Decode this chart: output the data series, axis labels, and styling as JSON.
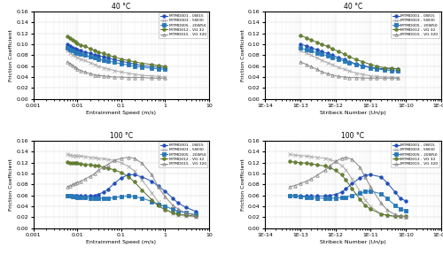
{
  "legend_entries": [
    "MTMD001 - 0W15",
    "MTMD003 - 5W30",
    "MTMD005 - 20W50",
    "MTMD012 - VG 32",
    "MTMD015 - VG 320"
  ],
  "xlabel_speed": "Entrainment Speed (m/s)",
  "xlabel_stribeck": "Stribeck Number (Un/p)",
  "ylabel": "Friction Coefficient",
  "line_colors": [
    "#1e4db5",
    "#aaaaaa",
    "#2878b8",
    "#556b2f",
    "#888888"
  ],
  "marker_styles": [
    "o",
    "x",
    "s",
    "o",
    "^"
  ],
  "marker_sizes": [
    2.5,
    3.5,
    2.5,
    2.5,
    2.5
  ],
  "markerfacecolors": [
    "#1e4db5",
    "none",
    "#2878b8",
    "#6b8e23",
    "none"
  ],
  "series_keys": [
    "MTMD001",
    "MTMD003",
    "MTMD005",
    "MTMD012",
    "MTMD015"
  ],
  "series_40_speed": {
    "MTMD001": {
      "x": [
        0.006,
        0.007,
        0.008,
        0.009,
        0.01,
        0.012,
        0.015,
        0.02,
        0.025,
        0.03,
        0.04,
        0.05,
        0.07,
        0.1,
        0.15,
        0.2,
        0.3,
        0.5,
        0.7,
        1.0
      ],
      "y": [
        0.1,
        0.097,
        0.094,
        0.092,
        0.09,
        0.088,
        0.086,
        0.083,
        0.081,
        0.079,
        0.077,
        0.075,
        0.072,
        0.069,
        0.066,
        0.064,
        0.061,
        0.059,
        0.058,
        0.057
      ]
    },
    "MTMD003": {
      "x": [
        0.006,
        0.007,
        0.008,
        0.009,
        0.01,
        0.012,
        0.015,
        0.02,
        0.025,
        0.03,
        0.04,
        0.05,
        0.07,
        0.1,
        0.15,
        0.2,
        0.3,
        0.5,
        0.7,
        1.0
      ],
      "y": [
        0.088,
        0.084,
        0.081,
        0.079,
        0.076,
        0.073,
        0.07,
        0.066,
        0.063,
        0.06,
        0.057,
        0.055,
        0.052,
        0.049,
        0.047,
        0.045,
        0.043,
        0.042,
        0.041,
        0.04
      ]
    },
    "MTMD005": {
      "x": [
        0.006,
        0.007,
        0.008,
        0.009,
        0.01,
        0.012,
        0.015,
        0.02,
        0.025,
        0.03,
        0.04,
        0.05,
        0.07,
        0.1,
        0.15,
        0.2,
        0.3,
        0.5,
        0.7,
        1.0
      ],
      "y": [
        0.093,
        0.09,
        0.088,
        0.086,
        0.084,
        0.082,
        0.08,
        0.077,
        0.075,
        0.073,
        0.071,
        0.069,
        0.067,
        0.064,
        0.062,
        0.06,
        0.058,
        0.056,
        0.055,
        0.054
      ]
    },
    "MTMD012": {
      "x": [
        0.006,
        0.007,
        0.008,
        0.009,
        0.01,
        0.012,
        0.015,
        0.02,
        0.025,
        0.03,
        0.04,
        0.05,
        0.07,
        0.1,
        0.15,
        0.2,
        0.3,
        0.5,
        0.7,
        1.0
      ],
      "y": [
        0.115,
        0.111,
        0.108,
        0.105,
        0.102,
        0.099,
        0.096,
        0.092,
        0.089,
        0.086,
        0.083,
        0.08,
        0.077,
        0.073,
        0.07,
        0.068,
        0.065,
        0.063,
        0.061,
        0.06
      ]
    },
    "MTMD015": {
      "x": [
        0.006,
        0.007,
        0.008,
        0.009,
        0.01,
        0.012,
        0.015,
        0.02,
        0.025,
        0.03,
        0.04,
        0.05,
        0.07,
        0.1,
        0.15,
        0.2,
        0.3,
        0.5,
        0.7,
        1.0
      ],
      "y": [
        0.068,
        0.064,
        0.061,
        0.058,
        0.055,
        0.052,
        0.049,
        0.046,
        0.044,
        0.043,
        0.042,
        0.041,
        0.04,
        0.04,
        0.039,
        0.039,
        0.039,
        0.038,
        0.038,
        0.038
      ]
    }
  },
  "series_40_stribeck": {
    "MTMD001": {
      "x": [
        1e-13,
        1.5e-13,
        2e-13,
        3e-13,
        4e-13,
        6e-13,
        8e-13,
        1.2e-12,
        1.8e-12,
        2.5e-12,
        4e-12,
        6e-12,
        1e-11,
        1.5e-11,
        2.5e-11,
        4e-11,
        6e-11
      ],
      "y": [
        0.1,
        0.097,
        0.094,
        0.09,
        0.087,
        0.083,
        0.08,
        0.076,
        0.072,
        0.068,
        0.064,
        0.061,
        0.058,
        0.056,
        0.055,
        0.055,
        0.055
      ]
    },
    "MTMD003": {
      "x": [
        1e-13,
        1.5e-13,
        2e-13,
        3e-13,
        4e-13,
        6e-13,
        8e-13,
        1.2e-12,
        1.8e-12,
        2.5e-12,
        4e-12,
        6e-12,
        1e-11,
        1.5e-11,
        2.5e-11,
        4e-11,
        6e-11
      ],
      "y": [
        0.088,
        0.084,
        0.08,
        0.075,
        0.071,
        0.066,
        0.063,
        0.058,
        0.054,
        0.051,
        0.047,
        0.045,
        0.042,
        0.041,
        0.04,
        0.04,
        0.039
      ]
    },
    "MTMD005": {
      "x": [
        1e-13,
        1.5e-13,
        2e-13,
        3e-13,
        4e-13,
        6e-13,
        8e-13,
        1.2e-12,
        1.8e-12,
        2.5e-12,
        4e-12,
        6e-12,
        1e-11,
        1.5e-11,
        2.5e-11,
        4e-11,
        6e-11
      ],
      "y": [
        0.093,
        0.09,
        0.088,
        0.084,
        0.082,
        0.079,
        0.076,
        0.073,
        0.069,
        0.066,
        0.063,
        0.06,
        0.057,
        0.055,
        0.053,
        0.052,
        0.051
      ]
    },
    "MTMD012": {
      "x": [
        1e-13,
        1.5e-13,
        2e-13,
        3e-13,
        4e-13,
        6e-13,
        8e-13,
        1.2e-12,
        1.8e-12,
        2.5e-12,
        4e-12,
        6e-12,
        1e-11,
        1.5e-11,
        2.5e-11,
        4e-11,
        6e-11
      ],
      "y": [
        0.116,
        0.112,
        0.108,
        0.104,
        0.1,
        0.096,
        0.092,
        0.087,
        0.082,
        0.077,
        0.072,
        0.068,
        0.063,
        0.06,
        0.057,
        0.056,
        0.055
      ]
    },
    "MTMD015": {
      "x": [
        1e-13,
        1.5e-13,
        2e-13,
        3e-13,
        4e-13,
        6e-13,
        8e-13,
        1.2e-12,
        1.8e-12,
        2.5e-12,
        4e-12,
        6e-12,
        1e-11,
        1.5e-11,
        2.5e-11,
        4e-11,
        6e-11
      ],
      "y": [
        0.068,
        0.063,
        0.059,
        0.054,
        0.05,
        0.046,
        0.044,
        0.041,
        0.04,
        0.039,
        0.039,
        0.038,
        0.038,
        0.038,
        0.038,
        0.038,
        0.038
      ]
    }
  },
  "series_100_speed": {
    "MTMD001": {
      "x": [
        0.006,
        0.007,
        0.008,
        0.009,
        0.01,
        0.012,
        0.015,
        0.02,
        0.025,
        0.03,
        0.04,
        0.05,
        0.07,
        0.1,
        0.15,
        0.2,
        0.3,
        0.5,
        0.7,
        1.0,
        1.5,
        2.0,
        3.0,
        5.0
      ],
      "y": [
        0.06,
        0.059,
        0.059,
        0.059,
        0.059,
        0.059,
        0.059,
        0.059,
        0.06,
        0.062,
        0.066,
        0.071,
        0.082,
        0.092,
        0.098,
        0.098,
        0.094,
        0.086,
        0.077,
        0.068,
        0.055,
        0.046,
        0.038,
        0.031
      ]
    },
    "MTMD003": {
      "x": [
        0.006,
        0.007,
        0.008,
        0.009,
        0.01,
        0.012,
        0.015,
        0.02,
        0.025,
        0.03,
        0.04,
        0.05,
        0.07,
        0.1,
        0.15,
        0.2,
        0.3,
        0.5,
        0.7,
        1.0,
        1.5,
        2.0,
        3.0,
        5.0
      ],
      "y": [
        0.135,
        0.134,
        0.133,
        0.133,
        0.132,
        0.132,
        0.131,
        0.13,
        0.129,
        0.128,
        0.127,
        0.126,
        0.124,
        0.12,
        0.113,
        0.105,
        0.088,
        0.065,
        0.048,
        0.036,
        0.027,
        0.024,
        0.022,
        0.021
      ]
    },
    "MTMD005": {
      "x": [
        0.006,
        0.007,
        0.008,
        0.009,
        0.01,
        0.012,
        0.015,
        0.02,
        0.025,
        0.03,
        0.04,
        0.05,
        0.07,
        0.1,
        0.15,
        0.2,
        0.3,
        0.5,
        0.7,
        1.0,
        1.5,
        2.0,
        3.0,
        5.0
      ],
      "y": [
        0.06,
        0.059,
        0.058,
        0.058,
        0.057,
        0.057,
        0.056,
        0.055,
        0.055,
        0.055,
        0.055,
        0.055,
        0.056,
        0.058,
        0.059,
        0.058,
        0.055,
        0.049,
        0.044,
        0.04,
        0.035,
        0.031,
        0.028,
        0.025
      ]
    },
    "MTMD012": {
      "x": [
        0.006,
        0.007,
        0.008,
        0.009,
        0.01,
        0.012,
        0.015,
        0.02,
        0.025,
        0.03,
        0.04,
        0.05,
        0.07,
        0.1,
        0.15,
        0.2,
        0.3,
        0.5,
        0.7,
        1.0,
        1.5,
        2.0,
        3.0,
        5.0
      ],
      "y": [
        0.121,
        0.12,
        0.12,
        0.119,
        0.119,
        0.118,
        0.117,
        0.116,
        0.115,
        0.114,
        0.112,
        0.11,
        0.107,
        0.102,
        0.094,
        0.085,
        0.07,
        0.052,
        0.041,
        0.034,
        0.028,
        0.026,
        0.024,
        0.022
      ]
    },
    "MTMD015": {
      "x": [
        0.006,
        0.007,
        0.008,
        0.009,
        0.01,
        0.012,
        0.015,
        0.02,
        0.025,
        0.03,
        0.04,
        0.05,
        0.07,
        0.1,
        0.15,
        0.2,
        0.3,
        0.5,
        0.7,
        1.0,
        1.5,
        2.0,
        3.0,
        5.0
      ],
      "y": [
        0.076,
        0.078,
        0.08,
        0.082,
        0.084,
        0.086,
        0.09,
        0.095,
        0.1,
        0.106,
        0.112,
        0.117,
        0.124,
        0.128,
        0.13,
        0.128,
        0.119,
        0.098,
        0.076,
        0.058,
        0.042,
        0.035,
        0.028,
        0.023
      ]
    }
  },
  "series_100_stribeck": {
    "MTMD001": {
      "x": [
        5e-14,
        7e-14,
        1e-13,
        1.5e-13,
        2e-13,
        3e-13,
        5e-13,
        7e-13,
        1e-12,
        1.5e-12,
        2e-12,
        3e-12,
        5e-12,
        7e-12,
        1e-11,
        2e-11,
        3e-11,
        5e-11,
        7e-11,
        1e-10
      ],
      "y": [
        0.06,
        0.059,
        0.059,
        0.059,
        0.059,
        0.059,
        0.059,
        0.06,
        0.062,
        0.066,
        0.072,
        0.082,
        0.092,
        0.097,
        0.098,
        0.094,
        0.083,
        0.066,
        0.055,
        0.05
      ]
    },
    "MTMD003": {
      "x": [
        5e-14,
        7e-14,
        1e-13,
        1.5e-13,
        2e-13,
        3e-13,
        5e-13,
        7e-13,
        1e-12,
        1.5e-12,
        2e-12,
        3e-12,
        5e-12,
        7e-12,
        1e-11,
        2e-11,
        3e-11,
        5e-11,
        7e-11,
        1e-10
      ],
      "y": [
        0.135,
        0.134,
        0.133,
        0.132,
        0.131,
        0.13,
        0.128,
        0.126,
        0.122,
        0.115,
        0.107,
        0.09,
        0.068,
        0.052,
        0.04,
        0.026,
        0.023,
        0.021,
        0.021,
        0.021
      ]
    },
    "MTMD005": {
      "x": [
        5e-14,
        7e-14,
        1e-13,
        1.5e-13,
        2e-13,
        3e-13,
        5e-13,
        7e-13,
        1e-12,
        1.5e-12,
        2e-12,
        3e-12,
        5e-12,
        7e-12,
        1e-11,
        2e-11,
        3e-11,
        5e-11,
        7e-11,
        1e-10
      ],
      "y": [
        0.06,
        0.059,
        0.058,
        0.057,
        0.056,
        0.055,
        0.055,
        0.055,
        0.055,
        0.056,
        0.057,
        0.06,
        0.064,
        0.067,
        0.068,
        0.063,
        0.054,
        0.042,
        0.036,
        0.032
      ]
    },
    "MTMD012": {
      "x": [
        5e-14,
        7e-14,
        1e-13,
        1.5e-13,
        2e-13,
        3e-13,
        5e-13,
        7e-13,
        1e-12,
        1.5e-12,
        2e-12,
        3e-12,
        5e-12,
        7e-12,
        1e-11,
        2e-11,
        3e-11,
        5e-11,
        7e-11,
        1e-10
      ],
      "y": [
        0.122,
        0.121,
        0.12,
        0.119,
        0.118,
        0.116,
        0.114,
        0.111,
        0.106,
        0.098,
        0.088,
        0.072,
        0.053,
        0.042,
        0.035,
        0.026,
        0.024,
        0.022,
        0.022,
        0.022
      ]
    },
    "MTMD015": {
      "x": [
        5e-14,
        7e-14,
        1e-13,
        1.5e-13,
        2e-13,
        3e-13,
        5e-13,
        7e-13,
        1e-12,
        1.5e-12,
        2e-12,
        3e-12,
        5e-12,
        7e-12,
        1e-11,
        2e-11,
        3e-11,
        5e-11,
        7e-11,
        1e-10
      ],
      "y": [
        0.076,
        0.078,
        0.082,
        0.086,
        0.09,
        0.097,
        0.106,
        0.114,
        0.122,
        0.128,
        0.13,
        0.126,
        0.112,
        0.094,
        0.076,
        0.046,
        0.033,
        0.025,
        0.022,
        0.021
      ]
    }
  }
}
